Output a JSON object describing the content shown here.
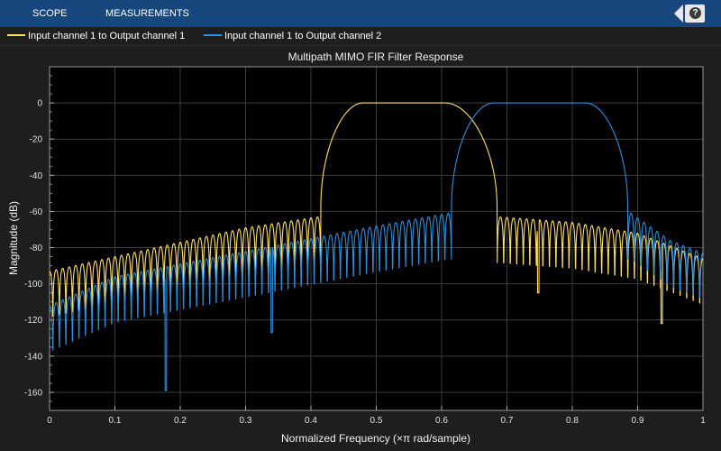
{
  "toolstrip": {
    "tabs": [
      {
        "label": "SCOPE"
      },
      {
        "label": "MEASUREMENTS"
      }
    ],
    "help_label": "?"
  },
  "colors": {
    "series1": "#ffe066",
    "series2": "#2e8fdb",
    "axes_bg": "#000000",
    "toolstrip_bg": "#17477c"
  },
  "chart_data": {
    "type": "line",
    "title": "Multipath MIMO FIR Filter Response",
    "xlabel": "Normalized Frequency (×π rad/sample)",
    "ylabel": "Magnitude (dB)",
    "xlim": [
      0,
      1
    ],
    "ylim": [
      -170,
      20
    ],
    "xticks": [
      0,
      0.1,
      0.2,
      0.3,
      0.4,
      0.5,
      0.6,
      0.7,
      0.8,
      0.9,
      1
    ],
    "xtick_labels": [
      "0",
      "0.1",
      "0.2",
      "0.3",
      "0.4",
      "0.5",
      "0.6",
      "0.7",
      "0.8",
      "0.9",
      "1"
    ],
    "yticks": [
      0,
      -20,
      -40,
      -60,
      -80,
      -100,
      -120,
      -140,
      -160
    ],
    "ytick_labels": [
      "0",
      "-20",
      "-40",
      "-60",
      "-80",
      "-100",
      "-120",
      "-140",
      "-160"
    ],
    "grid": true,
    "legend_position": "top",
    "series": [
      {
        "name": "Input channel 1 to Output channel 1",
        "passband": [
          0.48,
          0.605
        ],
        "transition_edges": [
          0.415,
          0.685
        ],
        "sidelobe_envelope": {
          "x": [
            0,
            0.1,
            0.2,
            0.3,
            0.41,
            0.69,
            0.8,
            0.9,
            1.0
          ],
          "y": [
            -93,
            -85,
            -77,
            -69,
            -63,
            -63,
            -66,
            -72,
            -86
          ]
        },
        "notable_nulls": [
          {
            "x": 0.937,
            "y": -122
          },
          {
            "x": 0.748,
            "y": -105
          }
        ]
      },
      {
        "name": "Input channel 1 to Output channel 2",
        "passband": [
          0.68,
          0.82
        ],
        "transition_edges": [
          0.615,
          0.885
        ],
        "sidelobe_envelope": {
          "x": [
            0,
            0.1,
            0.2,
            0.3,
            0.4,
            0.5,
            0.61,
            0.89,
            0.95,
            1.0
          ],
          "y": [
            -112,
            -96,
            -89,
            -82,
            -75,
            -68,
            -61,
            -61,
            -76,
            -83
          ]
        },
        "notable_nulls": [
          {
            "x": 0.178,
            "y": -159
          },
          {
            "x": 0.34,
            "y": -127
          }
        ]
      }
    ]
  }
}
